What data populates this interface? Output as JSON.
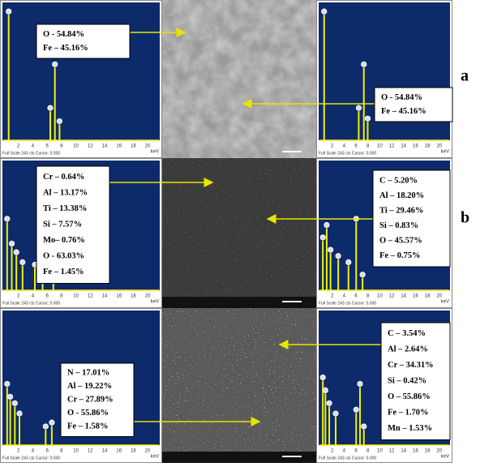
{
  "figure": {
    "rows": [
      {
        "left_box": [
          "O - 54.84%",
          "Fe – 45.16%"
        ],
        "right_box": [
          "O -  54.84%",
          "Fe – 45.16%"
        ]
      },
      {
        "left_box": [
          "Cr – 0.64%",
          "Al – 13.17%",
          "Ti – 13.38%",
          "Si – 7.57%",
          "Mo– 0.76%",
          "O - 63.03%",
          "Fe – 1.45%"
        ],
        "right_box": [
          "C  – 5.20%",
          "Al – 18.20%",
          "Ti – 29.46%",
          "Si – 0.83%",
          "O  – 45.57%",
          "Fe – 0.75%"
        ]
      },
      {
        "left_box": [
          "N  – 17.01%",
          "Al – 19.22%",
          "Cr – 27.89%",
          "O  - 55.86%",
          "Fe – 1.58%"
        ],
        "right_box": [
          "C – 3.54%",
          "Al – 2.64%",
          "Cr – 34.31%",
          "Si – 0.42%",
          "O – 55.86%",
          "Fe – 1.70%",
          "Mn – 1.53%"
        ]
      }
    ],
    "labels": [
      "a",
      "b"
    ],
    "spectrum": {
      "ticks": [
        "2",
        "4",
        "6",
        "8",
        "10",
        "12",
        "14",
        "16",
        "18",
        "20"
      ],
      "unit": "keV",
      "caption": "Full Scale 243 cts Cursor: 0.000"
    }
  }
}
